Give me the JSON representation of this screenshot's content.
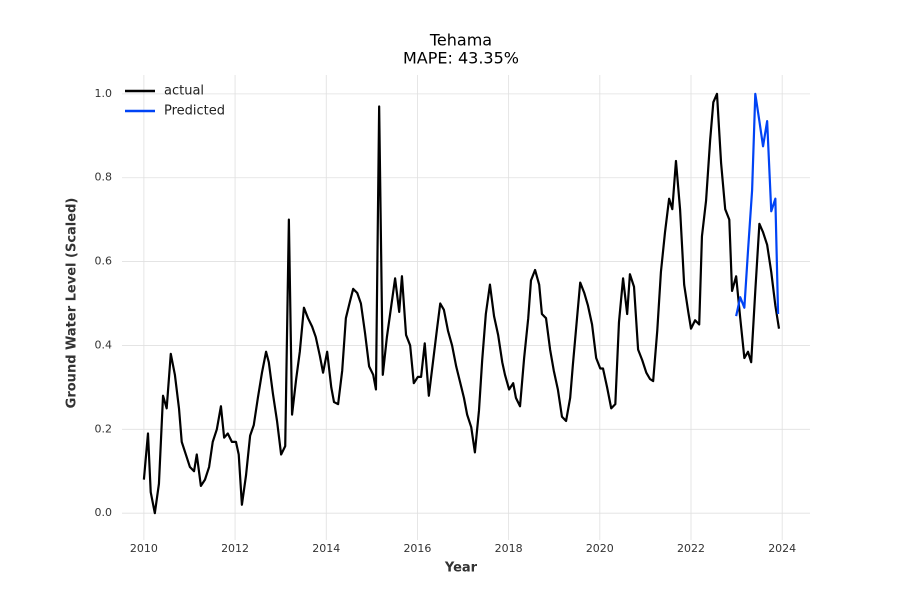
{
  "chart_data": {
    "type": "line",
    "title": "Tehama",
    "subtitle": "MAPE: 43.35%",
    "xlabel": "Year",
    "ylabel": "Ground Water Level (Scaled)",
    "xlim": [
      2009.52,
      2024.61
    ],
    "ylim": [
      -0.064,
      1.045
    ],
    "xticks": [
      2010,
      2012,
      2014,
      2016,
      2018,
      2020,
      2022,
      2024
    ],
    "yticks": [
      {
        "value": 0,
        "label": "0.0"
      },
      0.2,
      0.4,
      0.6,
      0.8,
      {
        "value": 1,
        "label": "1.0"
      }
    ],
    "grid": true,
    "legend": "upper left",
    "series": [
      {
        "name": "actual",
        "color": "#000000",
        "x": [
          2010.0,
          2010.09,
          2010.15,
          2010.24,
          2010.33,
          2010.42,
          2010.5,
          2010.59,
          2010.68,
          2010.77,
          2010.83,
          2010.92,
          2011.01,
          2011.1,
          2011.16,
          2011.25,
          2011.34,
          2011.43,
          2011.51,
          2011.6,
          2011.69,
          2011.76,
          2011.84,
          2011.93,
          2012.02,
          2012.08,
          2012.15,
          2012.24,
          2012.33,
          2012.41,
          2012.5,
          2012.59,
          2012.68,
          2012.74,
          2012.83,
          2012.92,
          2013.01,
          2013.1,
          2013.18,
          2013.25,
          2013.34,
          2013.42,
          2013.51,
          2013.6,
          2013.69,
          2013.77,
          2013.86,
          2013.93,
          2014.02,
          2014.11,
          2014.17,
          2014.26,
          2014.35,
          2014.43,
          2014.52,
          2014.59,
          2014.68,
          2014.76,
          2014.85,
          2014.94,
          2015.03,
          2015.09,
          2015.16,
          2015.24,
          2015.33,
          2015.42,
          2015.51,
          2015.6,
          2015.66,
          2015.75,
          2015.84,
          2015.92,
          2016.01,
          2016.08,
          2016.16,
          2016.25,
          2016.34,
          2016.43,
          2016.5,
          2016.58,
          2016.67,
          2016.76,
          2016.85,
          2016.93,
          2017.02,
          2017.09,
          2017.18,
          2017.26,
          2017.35,
          2017.42,
          2017.5,
          2017.59,
          2017.68,
          2017.77,
          2017.86,
          2017.92,
          2018.01,
          2018.1,
          2018.16,
          2018.25,
          2018.34,
          2018.43,
          2018.49,
          2018.58,
          2018.67,
          2018.73,
          2018.82,
          2018.91,
          2018.99,
          2019.08,
          2019.17,
          2019.26,
          2019.35,
          2019.41,
          2019.5,
          2019.57,
          2019.66,
          2019.74,
          2019.83,
          2019.92,
          2020.01,
          2020.07,
          2020.16,
          2020.25,
          2020.34,
          2020.42,
          2020.51,
          2020.6,
          2020.66,
          2020.75,
          2020.84,
          2020.93,
          2021.02,
          2021.1,
          2021.17,
          2021.26,
          2021.34,
          2021.43,
          2021.52,
          2021.59,
          2021.67,
          2021.76,
          2021.85,
          2021.94,
          2022.0,
          2022.09,
          2022.18,
          2022.24,
          2022.33,
          2022.42,
          2022.49,
          2022.57,
          2022.66,
          2022.75,
          2022.84,
          2022.9,
          2022.99,
          2023.08,
          2023.17,
          2023.25,
          2023.32,
          2023.41,
          2023.5,
          2023.58,
          2023.67,
          2023.76,
          2023.85,
          2023.93
        ],
        "values": [
          0.08,
          0.19,
          0.05,
          0.0,
          0.07,
          0.28,
          0.25,
          0.38,
          0.33,
          0.25,
          0.17,
          0.14,
          0.11,
          0.1,
          0.14,
          0.065,
          0.08,
          0.11,
          0.17,
          0.2,
          0.255,
          0.18,
          0.19,
          0.17,
          0.17,
          0.14,
          0.02,
          0.09,
          0.185,
          0.21,
          0.275,
          0.335,
          0.385,
          0.36,
          0.285,
          0.22,
          0.14,
          0.16,
          0.7,
          0.235,
          0.32,
          0.385,
          0.49,
          0.465,
          0.445,
          0.42,
          0.375,
          0.335,
          0.385,
          0.3,
          0.265,
          0.26,
          0.34,
          0.465,
          0.505,
          0.535,
          0.525,
          0.5,
          0.43,
          0.35,
          0.33,
          0.295,
          0.97,
          0.33,
          0.42,
          0.49,
          0.56,
          0.48,
          0.565,
          0.425,
          0.4,
          0.31,
          0.325,
          0.325,
          0.405,
          0.28,
          0.36,
          0.44,
          0.5,
          0.485,
          0.435,
          0.4,
          0.35,
          0.315,
          0.275,
          0.235,
          0.205,
          0.145,
          0.245,
          0.365,
          0.475,
          0.545,
          0.47,
          0.425,
          0.36,
          0.33,
          0.295,
          0.31,
          0.275,
          0.255,
          0.37,
          0.465,
          0.555,
          0.58,
          0.545,
          0.475,
          0.465,
          0.39,
          0.34,
          0.295,
          0.23,
          0.22,
          0.275,
          0.355,
          0.465,
          0.55,
          0.525,
          0.495,
          0.45,
          0.37,
          0.345,
          0.345,
          0.3,
          0.25,
          0.26,
          0.455,
          0.56,
          0.475,
          0.57,
          0.54,
          0.39,
          0.365,
          0.335,
          0.32,
          0.315,
          0.435,
          0.575,
          0.67,
          0.75,
          0.725,
          0.84,
          0.725,
          0.545,
          0.48,
          0.44,
          0.46,
          0.45,
          0.66,
          0.745,
          0.89,
          0.98,
          1.0,
          0.835,
          0.725,
          0.7,
          0.53,
          0.565,
          0.465,
          0.37,
          0.385,
          0.36,
          0.53,
          0.69,
          0.67,
          0.64,
          0.575,
          0.495,
          0.44
        ]
      },
      {
        "name": "Predicted",
        "color": "#0043f5",
        "x": [
          2022.99,
          2023.08,
          2023.17,
          2023.25,
          2023.34,
          2023.41,
          2023.5,
          2023.58,
          2023.67,
          2023.76,
          2023.85,
          2023.91
        ],
        "values": [
          0.47,
          0.515,
          0.49,
          0.625,
          0.77,
          1.0,
          0.935,
          0.875,
          0.935,
          0.72,
          0.75,
          0.475
        ]
      }
    ]
  }
}
